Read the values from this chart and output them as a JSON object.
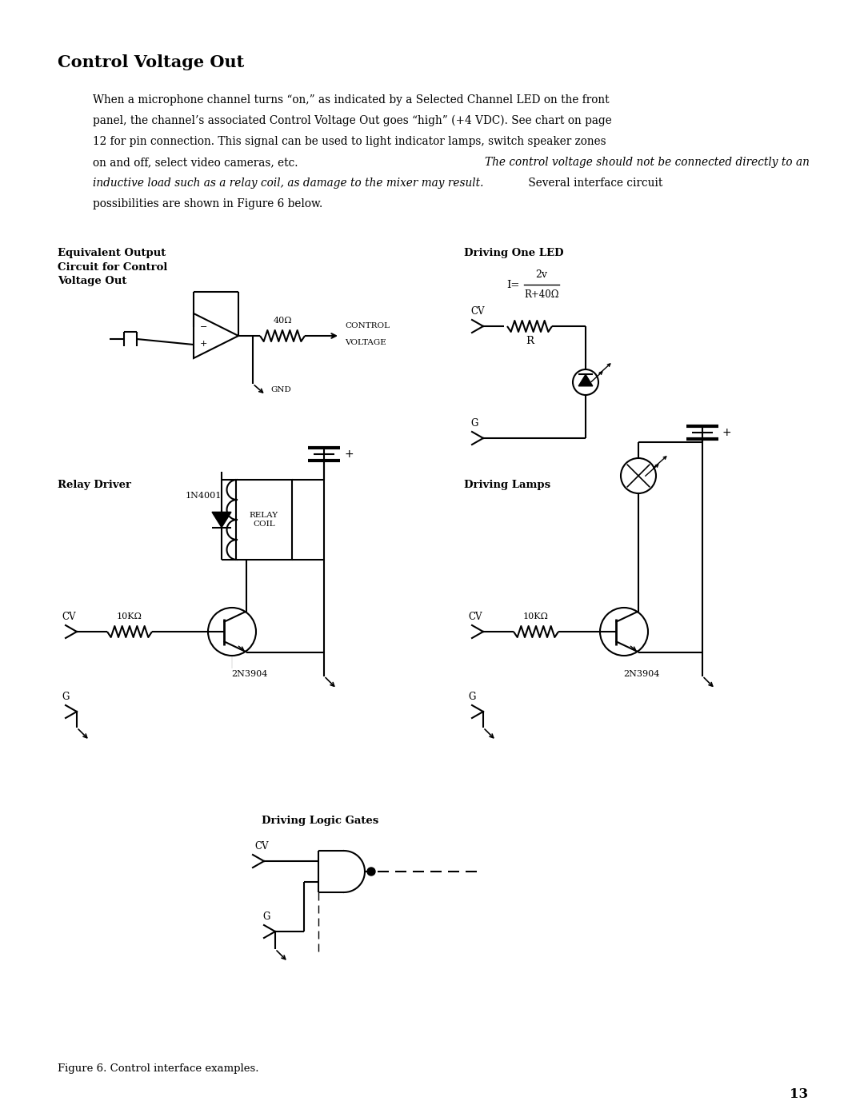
{
  "title": "Control Voltage Out",
  "body_text_normal1": "When a microphone channel turns “on,” as indicated by a Selected Channel LED on the front\npanel, the channel’s associated Control Voltage Out goes “high” (+4 VDC). See chart on page\n12 for pin connection. This signal can be used to light indicator lamps, switch speaker zones\non and off, select video cameras, etc. ",
  "body_text_italic": "The control voltage should not be connected directly to an\ninductive load such as a relay coil, as damage to the mixer may result.",
  "body_text_normal2": " Several interface circuit\npossibilities are shown in Figure 6 below.",
  "figure_caption": "Figure 6. Control interface examples.",
  "page_number": "13",
  "bg_color": "#ffffff",
  "text_color": "#000000",
  "line_color": "#1a1a1a"
}
